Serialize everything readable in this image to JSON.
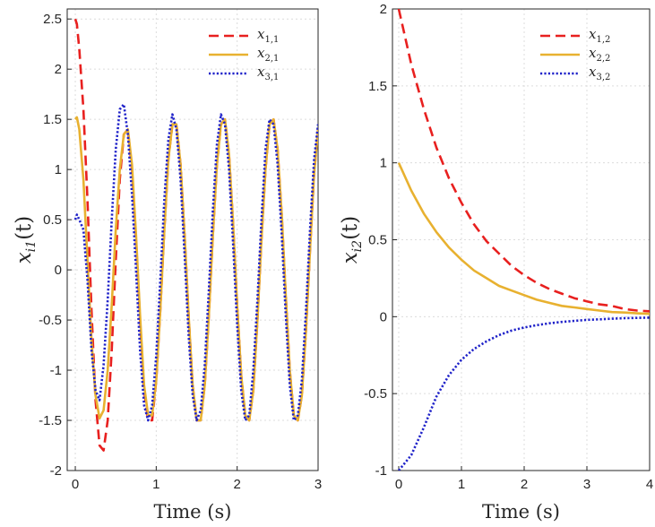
{
  "chart_data": [
    {
      "type": "line",
      "panel": "left",
      "xlabel": "Time (s)",
      "ylabel": {
        "base": "x",
        "sub": "i1",
        "arg": "(t)"
      },
      "xlim": [
        -0.1,
        3.0
      ],
      "ylim": [
        -2,
        2.6
      ],
      "xticks": [
        "0",
        "1",
        "2",
        "3"
      ],
      "xtick_values": [
        0,
        1,
        2,
        3
      ],
      "yticks": [
        "-2",
        "-1.5",
        "-1",
        "-0.5",
        "0",
        "0.5",
        "1",
        "1.5",
        "2",
        "2.5"
      ],
      "ytick_values": [
        -2,
        -1.5,
        -1,
        -0.5,
        0,
        0.5,
        1,
        1.5,
        2,
        2.5
      ],
      "grid": true,
      "legend_position": "top-right",
      "series": [
        {
          "name": "x1,1",
          "base": "x",
          "sub": "1,1",
          "color": "#e8201f",
          "style": "dashed",
          "x": [
            0,
            0.02,
            0.05,
            0.1,
            0.15,
            0.2,
            0.25,
            0.3,
            0.35,
            0.4,
            0.45,
            0.5,
            0.55,
            0.6,
            0.65,
            0.7,
            0.75,
            0.8,
            0.85,
            0.9,
            0.95,
            1.0,
            1.05,
            1.1,
            1.15,
            1.2,
            1.25,
            1.3,
            1.35,
            1.4,
            1.45,
            1.5,
            1.55,
            1.6,
            1.65,
            1.7,
            1.75,
            1.8,
            1.85,
            1.9,
            1.95,
            2.0,
            2.05,
            2.1,
            2.15,
            2.2,
            2.25,
            2.3,
            2.35,
            2.4,
            2.45,
            2.5,
            2.55,
            2.6,
            2.65,
            2.7,
            2.75,
            2.8,
            2.85,
            2.9,
            2.95,
            3.0
          ],
          "y": [
            2.5,
            2.45,
            2.2,
            1.6,
            0.7,
            -0.4,
            -1.3,
            -1.75,
            -1.8,
            -1.5,
            -0.8,
            0.1,
            0.9,
            1.35,
            1.4,
            1.0,
            0.3,
            -0.5,
            -1.2,
            -1.5,
            -1.5,
            -1.1,
            -0.4,
            0.4,
            1.1,
            1.45,
            1.45,
            1.05,
            0.35,
            -0.45,
            -1.15,
            -1.5,
            -1.5,
            -1.15,
            -0.45,
            0.35,
            1.05,
            1.45,
            1.5,
            1.15,
            0.45,
            -0.35,
            -1.05,
            -1.45,
            -1.5,
            -1.2,
            -0.5,
            0.3,
            1.0,
            1.45,
            1.5,
            1.2,
            0.55,
            -0.25,
            -1.0,
            -1.45,
            -1.5,
            -1.25,
            -0.6,
            0.2,
            0.95,
            1.4
          ]
        },
        {
          "name": "x2,1",
          "base": "x",
          "sub": "2,1",
          "color": "#e8b130",
          "style": "solid",
          "x": [
            0,
            0.02,
            0.05,
            0.1,
            0.15,
            0.2,
            0.25,
            0.3,
            0.35,
            0.4,
            0.45,
            0.5,
            0.55,
            0.6,
            0.65,
            0.7,
            0.75,
            0.8,
            0.85,
            0.9,
            0.95,
            1.0,
            1.05,
            1.1,
            1.15,
            1.2,
            1.25,
            1.3,
            1.35,
            1.4,
            1.45,
            1.5,
            1.55,
            1.6,
            1.65,
            1.7,
            1.75,
            1.8,
            1.85,
            1.9,
            1.95,
            2.0,
            2.05,
            2.1,
            2.15,
            2.2,
            2.25,
            2.3,
            2.35,
            2.4,
            2.45,
            2.5,
            2.55,
            2.6,
            2.65,
            2.7,
            2.75,
            2.8,
            2.85,
            2.9,
            2.95,
            3.0
          ],
          "y": [
            1.5,
            1.52,
            1.4,
            0.9,
            0.1,
            -0.7,
            -1.25,
            -1.48,
            -1.4,
            -1.0,
            -0.35,
            0.4,
            1.0,
            1.35,
            1.4,
            1.05,
            0.35,
            -0.45,
            -1.15,
            -1.45,
            -1.45,
            -1.1,
            -0.4,
            0.4,
            1.1,
            1.45,
            1.45,
            1.05,
            0.35,
            -0.45,
            -1.15,
            -1.5,
            -1.5,
            -1.15,
            -0.45,
            0.35,
            1.05,
            1.45,
            1.5,
            1.15,
            0.45,
            -0.35,
            -1.05,
            -1.45,
            -1.5,
            -1.2,
            -0.5,
            0.3,
            1.0,
            1.45,
            1.5,
            1.2,
            0.55,
            -0.25,
            -1.0,
            -1.45,
            -1.5,
            -1.25,
            -0.6,
            0.2,
            0.95,
            1.4
          ]
        },
        {
          "name": "x3,1",
          "base": "x",
          "sub": "3,1",
          "color": "#1f22c9",
          "style": "dotted",
          "x": [
            0,
            0.02,
            0.05,
            0.1,
            0.15,
            0.2,
            0.25,
            0.3,
            0.35,
            0.4,
            0.45,
            0.5,
            0.55,
            0.6,
            0.65,
            0.7,
            0.75,
            0.8,
            0.85,
            0.9,
            0.95,
            1.0,
            1.05,
            1.1,
            1.15,
            1.2,
            1.25,
            1.3,
            1.35,
            1.4,
            1.45,
            1.5,
            1.55,
            1.6,
            1.65,
            1.7,
            1.75,
            1.8,
            1.85,
            1.9,
            1.95,
            2.0,
            2.05,
            2.1,
            2.15,
            2.2,
            2.25,
            2.3,
            2.35,
            2.4,
            2.45,
            2.5,
            2.55,
            2.6,
            2.65,
            2.7,
            2.75,
            2.8,
            2.85,
            2.9,
            2.95,
            3.0
          ],
          "y": [
            0.5,
            0.55,
            0.5,
            0.4,
            -0.1,
            -0.8,
            -1.2,
            -1.3,
            -0.95,
            -0.3,
            0.5,
            1.2,
            1.6,
            1.65,
            1.35,
            0.75,
            0.0,
            -0.8,
            -1.35,
            -1.5,
            -1.35,
            -0.85,
            -0.1,
            0.7,
            1.3,
            1.55,
            1.4,
            0.9,
            0.15,
            -0.65,
            -1.25,
            -1.5,
            -1.4,
            -0.95,
            -0.2,
            0.6,
            1.25,
            1.55,
            1.45,
            1.0,
            0.25,
            -0.55,
            -1.2,
            -1.5,
            -1.45,
            -1.0,
            -0.3,
            0.5,
            1.2,
            1.5,
            1.45,
            1.05,
            0.35,
            -0.45,
            -1.15,
            -1.5,
            -1.45,
            -1.1,
            -0.4,
            0.4,
            1.1,
            1.45
          ]
        }
      ]
    },
    {
      "type": "line",
      "panel": "right",
      "xlabel": "Time (s)",
      "ylabel": {
        "base": "x",
        "sub": "i2",
        "arg": "(t)"
      },
      "xlim": [
        -0.1,
        4.0
      ],
      "ylim": [
        -1,
        2
      ],
      "xticks": [
        "0",
        "1",
        "2",
        "3",
        "4"
      ],
      "xtick_values": [
        0,
        1,
        2,
        3,
        4
      ],
      "yticks": [
        "-1",
        "-0.5",
        "0",
        "0.5",
        "1",
        "1.5",
        "2"
      ],
      "ytick_values": [
        -1,
        -0.5,
        0,
        0.5,
        1,
        1.5,
        2
      ],
      "grid": true,
      "legend_position": "top-right",
      "series": [
        {
          "name": "x1,2",
          "base": "x",
          "sub": "1,2",
          "color": "#e8201f",
          "style": "dashed",
          "x": [
            0,
            0.2,
            0.4,
            0.6,
            0.8,
            1.0,
            1.2,
            1.4,
            1.6,
            1.8,
            2.0,
            2.2,
            2.4,
            2.6,
            2.8,
            3.0,
            3.2,
            3.4,
            3.6,
            3.8,
            4.0
          ],
          "y": [
            2.0,
            1.64,
            1.35,
            1.1,
            0.9,
            0.74,
            0.6,
            0.49,
            0.41,
            0.33,
            0.27,
            0.22,
            0.18,
            0.15,
            0.12,
            0.1,
            0.08,
            0.07,
            0.05,
            0.04,
            0.035
          ]
        },
        {
          "name": "x2,2",
          "base": "x",
          "sub": "2,2",
          "color": "#e8b130",
          "style": "solid",
          "x": [
            0,
            0.2,
            0.4,
            0.6,
            0.8,
            1.0,
            1.2,
            1.4,
            1.6,
            1.8,
            2.0,
            2.2,
            2.4,
            2.6,
            2.8,
            3.0,
            3.2,
            3.4,
            3.6,
            3.8,
            4.0
          ],
          "y": [
            1.0,
            0.82,
            0.67,
            0.55,
            0.45,
            0.37,
            0.3,
            0.25,
            0.2,
            0.17,
            0.14,
            0.11,
            0.09,
            0.07,
            0.06,
            0.05,
            0.04,
            0.03,
            0.027,
            0.022,
            0.018
          ]
        },
        {
          "name": "x3,2",
          "base": "x",
          "sub": "3,2",
          "color": "#1f22c9",
          "style": "dotted",
          "x": [
            0,
            0.2,
            0.4,
            0.6,
            0.8,
            1.0,
            1.2,
            1.4,
            1.6,
            1.8,
            2.0,
            2.2,
            2.4,
            2.6,
            2.8,
            3.0,
            3.2,
            3.4,
            3.6,
            3.8,
            4.0
          ],
          "y": [
            -1.0,
            -0.9,
            -0.72,
            -0.52,
            -0.38,
            -0.28,
            -0.21,
            -0.16,
            -0.12,
            -0.09,
            -0.07,
            -0.055,
            -0.043,
            -0.034,
            -0.027,
            -0.021,
            -0.017,
            -0.013,
            -0.01,
            -0.008,
            -0.006
          ]
        }
      ]
    }
  ]
}
